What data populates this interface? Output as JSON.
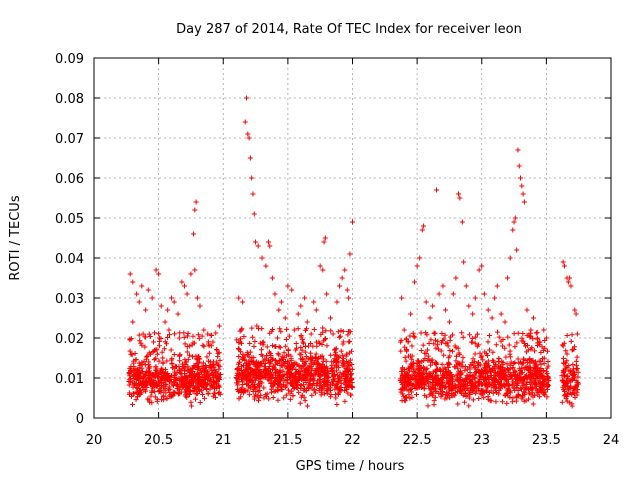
{
  "chart_data": {
    "type": "scatter",
    "title": "Day 287 of 2014, Rate Of TEC Index for receiver leon",
    "xlabel": "GPS time / hours",
    "ylabel": "ROTI / TECUs",
    "xlim": [
      20,
      24
    ],
    "ylim": [
      0,
      0.09
    ],
    "grid": true,
    "marker": "+",
    "color": "#ff0000",
    "x_ticks": [
      "20",
      "20.5",
      "21",
      "21.5",
      "22",
      "22.5",
      "23",
      "23.5",
      "24"
    ],
    "y_ticks": [
      "0",
      "0.01",
      "0.02",
      "0.03",
      "0.04",
      "0.05",
      "0.06",
      "0.07",
      "0.08",
      "0.09"
    ],
    "series": [
      {
        "name": "ROTI",
        "clusters": [
          {
            "x_start": 20.27,
            "x_end": 20.98,
            "count": 700,
            "base": 0.0095,
            "spread": 0.004
          },
          {
            "x_start": 21.1,
            "x_end": 22.0,
            "count": 900,
            "base": 0.0105,
            "spread": 0.0045
          },
          {
            "x_start": 22.37,
            "x_end": 23.52,
            "count": 1100,
            "base": 0.0095,
            "spread": 0.004
          },
          {
            "x_start": 23.62,
            "x_end": 23.75,
            "count": 110,
            "base": 0.009,
            "spread": 0.004
          }
        ],
        "points": [
          [
            20.28,
            0.036
          ],
          [
            20.3,
            0.034
          ],
          [
            20.33,
            0.031
          ],
          [
            20.35,
            0.029
          ],
          [
            20.37,
            0.033
          ],
          [
            20.4,
            0.027
          ],
          [
            20.42,
            0.032
          ],
          [
            20.45,
            0.03
          ],
          [
            20.48,
            0.037
          ],
          [
            20.5,
            0.036
          ],
          [
            20.52,
            0.028
          ],
          [
            20.55,
            0.024
          ],
          [
            20.57,
            0.027
          ],
          [
            20.6,
            0.03
          ],
          [
            20.62,
            0.029
          ],
          [
            20.65,
            0.026
          ],
          [
            20.68,
            0.034
          ],
          [
            20.7,
            0.033
          ],
          [
            20.72,
            0.031
          ],
          [
            20.75,
            0.036
          ],
          [
            20.78,
            0.037
          ],
          [
            20.8,
            0.03
          ],
          [
            20.82,
            0.028
          ],
          [
            20.85,
            0.022
          ],
          [
            20.3,
            0.024
          ],
          [
            20.38,
            0.021
          ],
          [
            20.46,
            0.019
          ],
          [
            20.58,
            0.022
          ],
          [
            20.66,
            0.02
          ],
          [
            20.74,
            0.018
          ],
          [
            20.88,
            0.021
          ],
          [
            20.92,
            0.019
          ],
          [
            20.95,
            0.017
          ],
          [
            20.97,
            0.023
          ],
          [
            20.77,
            0.046
          ],
          [
            20.78,
            0.052
          ],
          [
            20.79,
            0.054
          ],
          [
            21.12,
            0.03
          ],
          [
            21.15,
            0.029
          ],
          [
            21.17,
            0.074
          ],
          [
            21.18,
            0.08
          ],
          [
            21.19,
            0.071
          ],
          [
            21.2,
            0.07
          ],
          [
            21.21,
            0.065
          ],
          [
            21.22,
            0.06
          ],
          [
            21.23,
            0.056
          ],
          [
            21.24,
            0.051
          ],
          [
            21.25,
            0.044
          ],
          [
            21.27,
            0.043
          ],
          [
            21.3,
            0.04
          ],
          [
            21.33,
            0.038
          ],
          [
            21.35,
            0.044
          ],
          [
            21.36,
            0.043
          ],
          [
            21.38,
            0.035
          ],
          [
            21.4,
            0.031
          ],
          [
            21.43,
            0.027
          ],
          [
            21.45,
            0.029
          ],
          [
            21.48,
            0.025
          ],
          [
            21.5,
            0.033
          ],
          [
            21.53,
            0.032
          ],
          [
            21.55,
            0.022
          ],
          [
            21.58,
            0.026
          ],
          [
            21.6,
            0.028
          ],
          [
            21.63,
            0.03
          ],
          [
            21.65,
            0.024
          ],
          [
            21.68,
            0.021
          ],
          [
            21.7,
            0.029
          ],
          [
            21.72,
            0.027
          ],
          [
            21.75,
            0.038
          ],
          [
            21.77,
            0.037
          ],
          [
            21.78,
            0.044
          ],
          [
            21.79,
            0.045
          ],
          [
            21.8,
            0.031
          ],
          [
            21.83,
            0.025
          ],
          [
            21.85,
            0.021
          ],
          [
            21.88,
            0.029
          ],
          [
            21.9,
            0.033
          ],
          [
            21.92,
            0.035
          ],
          [
            21.94,
            0.037
          ],
          [
            21.96,
            0.032
          ],
          [
            21.98,
            0.041
          ],
          [
            22.0,
            0.049
          ],
          [
            21.97,
            0.03
          ],
          [
            21.14,
            0.022
          ],
          [
            21.26,
            0.023
          ],
          [
            21.31,
            0.019
          ],
          [
            21.42,
            0.02
          ],
          [
            21.56,
            0.017
          ],
          [
            21.66,
            0.018
          ],
          [
            21.74,
            0.019
          ],
          [
            21.86,
            0.017
          ],
          [
            22.38,
            0.03
          ],
          [
            22.4,
            0.022
          ],
          [
            22.43,
            0.019
          ],
          [
            22.45,
            0.026
          ],
          [
            22.48,
            0.034
          ],
          [
            22.5,
            0.038
          ],
          [
            22.52,
            0.04
          ],
          [
            22.54,
            0.047
          ],
          [
            22.55,
            0.048
          ],
          [
            22.57,
            0.029
          ],
          [
            22.6,
            0.025
          ],
          [
            22.62,
            0.028
          ],
          [
            22.65,
            0.057
          ],
          [
            22.67,
            0.031
          ],
          [
            22.7,
            0.033
          ],
          [
            22.72,
            0.027
          ],
          [
            22.75,
            0.024
          ],
          [
            22.78,
            0.031
          ],
          [
            22.8,
            0.035
          ],
          [
            22.82,
            0.056
          ],
          [
            22.83,
            0.055
          ],
          [
            22.85,
            0.049
          ],
          [
            22.86,
            0.039
          ],
          [
            22.88,
            0.033
          ],
          [
            22.9,
            0.028
          ],
          [
            22.93,
            0.026
          ],
          [
            22.95,
            0.03
          ],
          [
            22.98,
            0.037
          ],
          [
            23.0,
            0.038
          ],
          [
            23.02,
            0.031
          ],
          [
            23.05,
            0.027
          ],
          [
            23.08,
            0.025
          ],
          [
            23.1,
            0.03
          ],
          [
            23.12,
            0.033
          ],
          [
            23.15,
            0.026
          ],
          [
            23.18,
            0.024
          ],
          [
            23.2,
            0.035
          ],
          [
            23.22,
            0.04
          ],
          [
            23.24,
            0.047
          ],
          [
            23.25,
            0.049
          ],
          [
            23.26,
            0.05
          ],
          [
            23.27,
            0.042
          ],
          [
            23.28,
            0.067
          ],
          [
            23.29,
            0.063
          ],
          [
            23.3,
            0.06
          ],
          [
            23.31,
            0.058
          ],
          [
            23.32,
            0.056
          ],
          [
            23.33,
            0.054
          ],
          [
            23.35,
            0.027
          ],
          [
            23.38,
            0.022
          ],
          [
            23.4,
            0.025
          ],
          [
            23.43,
            0.02
          ],
          [
            23.45,
            0.019
          ],
          [
            23.48,
            0.022
          ],
          [
            23.5,
            0.02
          ],
          [
            22.46,
            0.018
          ],
          [
            22.58,
            0.017
          ],
          [
            22.74,
            0.018
          ],
          [
            22.92,
            0.019
          ],
          [
            23.06,
            0.017
          ],
          [
            23.16,
            0.018
          ],
          [
            23.36,
            0.017
          ],
          [
            23.63,
            0.039
          ],
          [
            23.64,
            0.038
          ],
          [
            23.66,
            0.035
          ],
          [
            23.67,
            0.034
          ],
          [
            23.68,
            0.035
          ],
          [
            23.69,
            0.033
          ],
          [
            23.72,
            0.027
          ],
          [
            23.73,
            0.026
          ],
          [
            23.74,
            0.021
          ],
          [
            23.63,
            0.018
          ],
          [
            23.7,
            0.017
          ],
          [
            23.66,
            0.016
          ]
        ]
      }
    ]
  }
}
